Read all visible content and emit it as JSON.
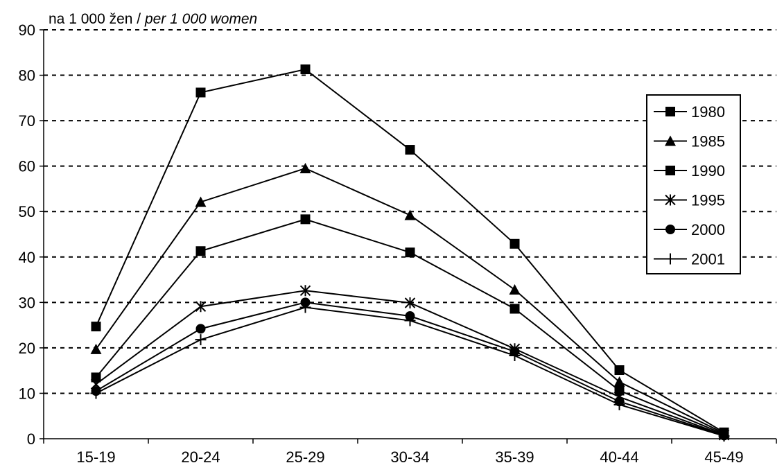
{
  "chart_data": {
    "type": "line",
    "y_unit_label": {
      "main": "na 1 000 žen / ",
      "italic": "per 1 000 women"
    },
    "categories": [
      "15-19",
      "20-24",
      "25-29",
      "30-34",
      "35-39",
      "40-44",
      "45-49"
    ],
    "ylim": [
      0,
      90
    ],
    "yticks": [
      0,
      10,
      20,
      30,
      40,
      50,
      60,
      70,
      80,
      90
    ],
    "grid": "horizontal dashed",
    "legend_position": "right",
    "series": [
      {
        "name": "1980",
        "marker": "square",
        "values": [
          24.7,
          76.2,
          81.3,
          63.6,
          42.9,
          15.1,
          1.4
        ]
      },
      {
        "name": "1985",
        "marker": "triangle",
        "values": [
          19.7,
          52.1,
          59.5,
          49.2,
          32.8,
          12.5,
          1.2
        ]
      },
      {
        "name": "1990",
        "marker": "square",
        "values": [
          13.5,
          41.3,
          48.3,
          41.0,
          28.6,
          10.6,
          1.0
        ]
      },
      {
        "name": "1995",
        "marker": "asterisk",
        "values": [
          12.0,
          29.1,
          32.6,
          29.9,
          19.8,
          9.2,
          0.8
        ]
      },
      {
        "name": "2000",
        "marker": "circle",
        "values": [
          10.5,
          24.2,
          30.0,
          27.0,
          19.2,
          8.2,
          0.7
        ]
      },
      {
        "name": "2001",
        "marker": "plus",
        "values": [
          10.0,
          21.8,
          28.9,
          26.0,
          18.3,
          7.5,
          0.6
        ]
      }
    ]
  }
}
